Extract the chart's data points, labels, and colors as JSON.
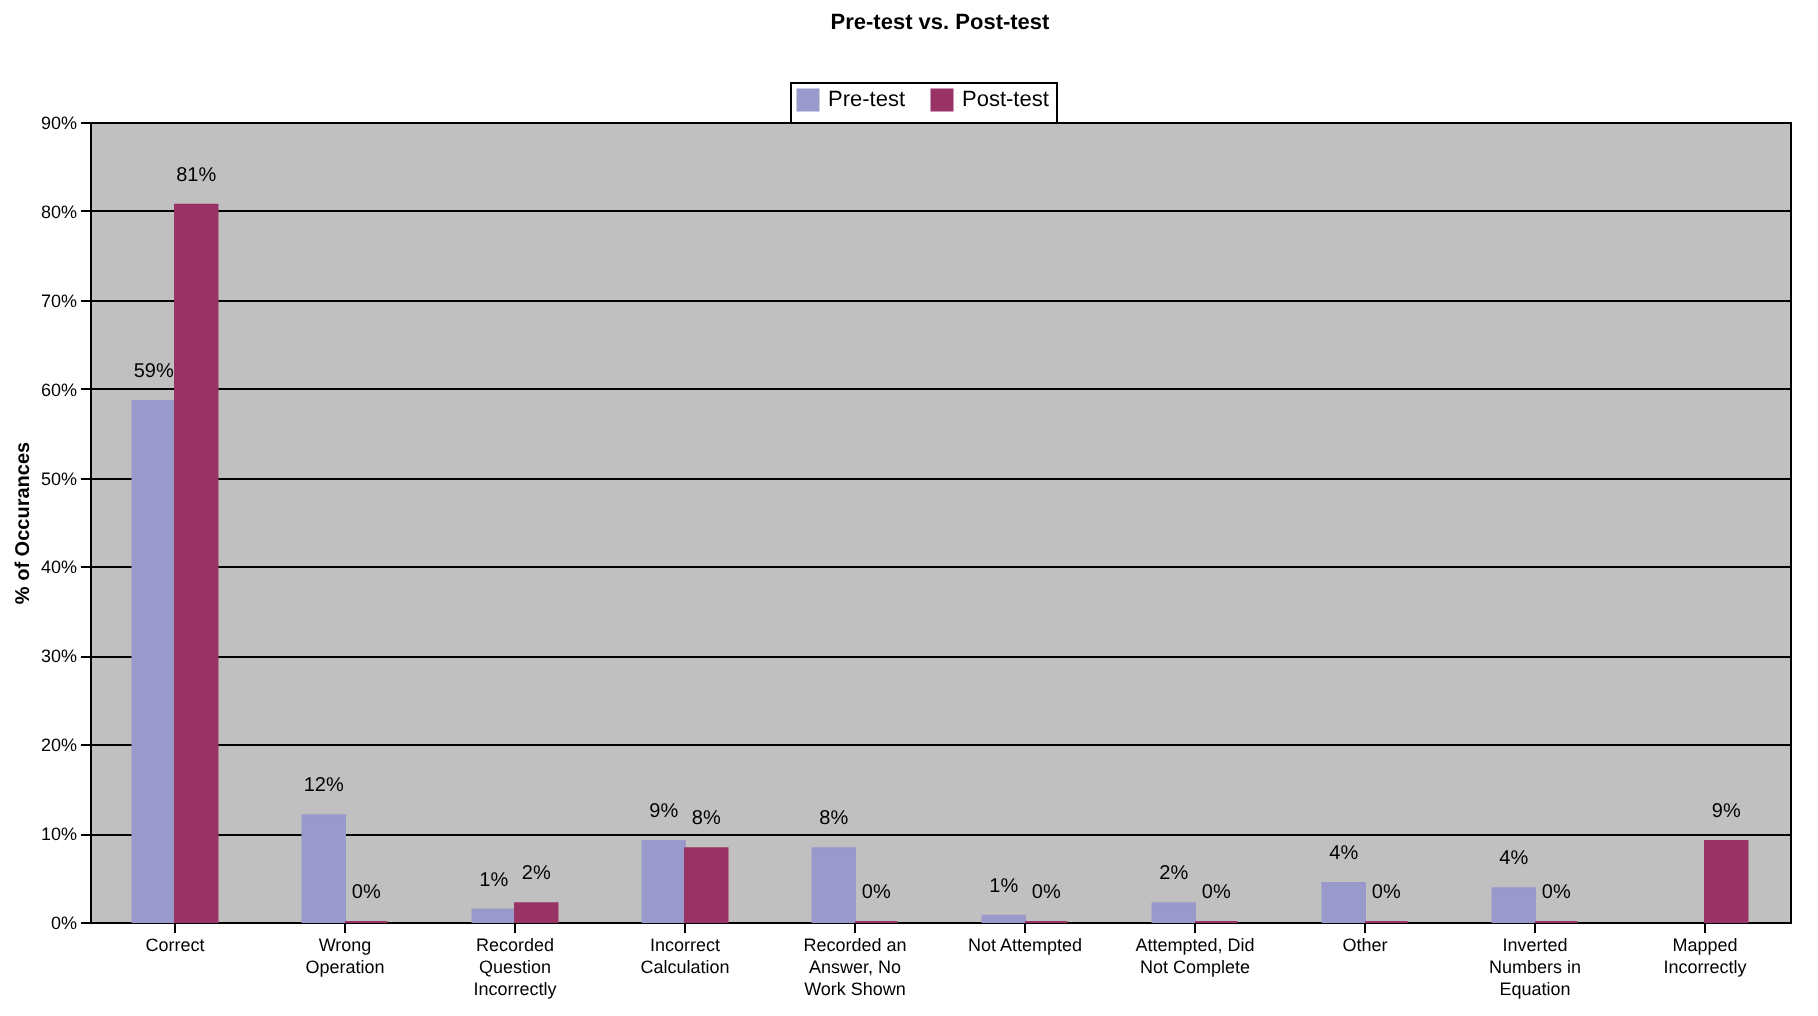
{
  "chart_data": {
    "type": "bar",
    "title": "Pre-test vs. Post-test",
    "ylabel": "% of Occurances",
    "categories": [
      "Correct",
      "Wrong Operation",
      "Recorded Question Incorrectly",
      "Incorrect Calculation",
      "Recorded an Answer, No Work Shown",
      "Not Attempted",
      "Attempted, Did Not Complete",
      "Other",
      "Inverted Numbers in Equation",
      "Mapped Incorrectly"
    ],
    "series": [
      {
        "name": "Pre-test",
        "color": "#9999cc",
        "values": [
          58.6,
          12,
          1.4,
          9.1,
          8.3,
          0.7,
          2.1,
          4.4,
          3.8,
          null
        ],
        "value_labels": [
          "59%",
          "12%",
          "1%",
          "9%",
          "8%",
          "1%",
          "2%",
          "4%",
          "4%",
          null
        ]
      },
      {
        "name": "Post-test",
        "color": "#993366",
        "values": [
          80.7,
          0,
          2.1,
          8.3,
          0,
          0,
          0,
          0,
          0,
          9.1
        ],
        "value_labels": [
          "81%",
          "0%",
          "2%",
          "8%",
          "0%",
          "0%",
          "0%",
          "0%",
          "0%",
          "9%"
        ]
      }
    ],
    "ylim": [
      0,
      90
    ],
    "yticks": [
      {
        "value": 0,
        "label": "0%"
      },
      {
        "value": 10,
        "label": "10%"
      },
      {
        "value": 20,
        "label": "20%"
      },
      {
        "value": 30,
        "label": "30%"
      },
      {
        "value": 40,
        "label": "40%"
      },
      {
        "value": 50,
        "label": "50%"
      },
      {
        "value": 60,
        "label": "60%"
      },
      {
        "value": 70,
        "label": "70%"
      },
      {
        "value": 80,
        "label": "80%"
      },
      {
        "value": 90,
        "label": "90%"
      }
    ],
    "grid": "y",
    "legend": "top"
  }
}
